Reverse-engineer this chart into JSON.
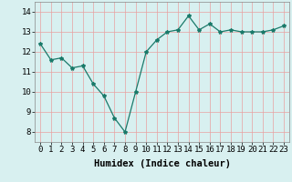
{
  "x": [
    0,
    1,
    2,
    3,
    4,
    5,
    6,
    7,
    8,
    9,
    10,
    11,
    12,
    13,
    14,
    15,
    16,
    17,
    18,
    19,
    20,
    21,
    22,
    23
  ],
  "y": [
    12.4,
    11.6,
    11.7,
    11.2,
    11.3,
    10.4,
    9.8,
    8.7,
    8.0,
    10.0,
    12.0,
    12.6,
    13.0,
    13.1,
    13.8,
    13.1,
    13.4,
    13.0,
    13.1,
    13.0,
    13.0,
    13.0,
    13.1,
    13.3
  ],
  "xlabel": "Humidex (Indice chaleur)",
  "xlim": [
    -0.5,
    23.5
  ],
  "ylim": [
    7.5,
    14.5
  ],
  "yticks": [
    8,
    9,
    10,
    11,
    12,
    13,
    14
  ],
  "xticks": [
    0,
    1,
    2,
    3,
    4,
    5,
    6,
    7,
    8,
    9,
    10,
    11,
    12,
    13,
    14,
    15,
    16,
    17,
    18,
    19,
    20,
    21,
    22,
    23
  ],
  "line_color": "#1a7a6a",
  "marker": "*",
  "marker_size": 3,
  "bg_color": "#d8f0f0",
  "grid_color": "#e8a0a0",
  "xlabel_fontsize": 7.5,
  "tick_fontsize": 6.5
}
